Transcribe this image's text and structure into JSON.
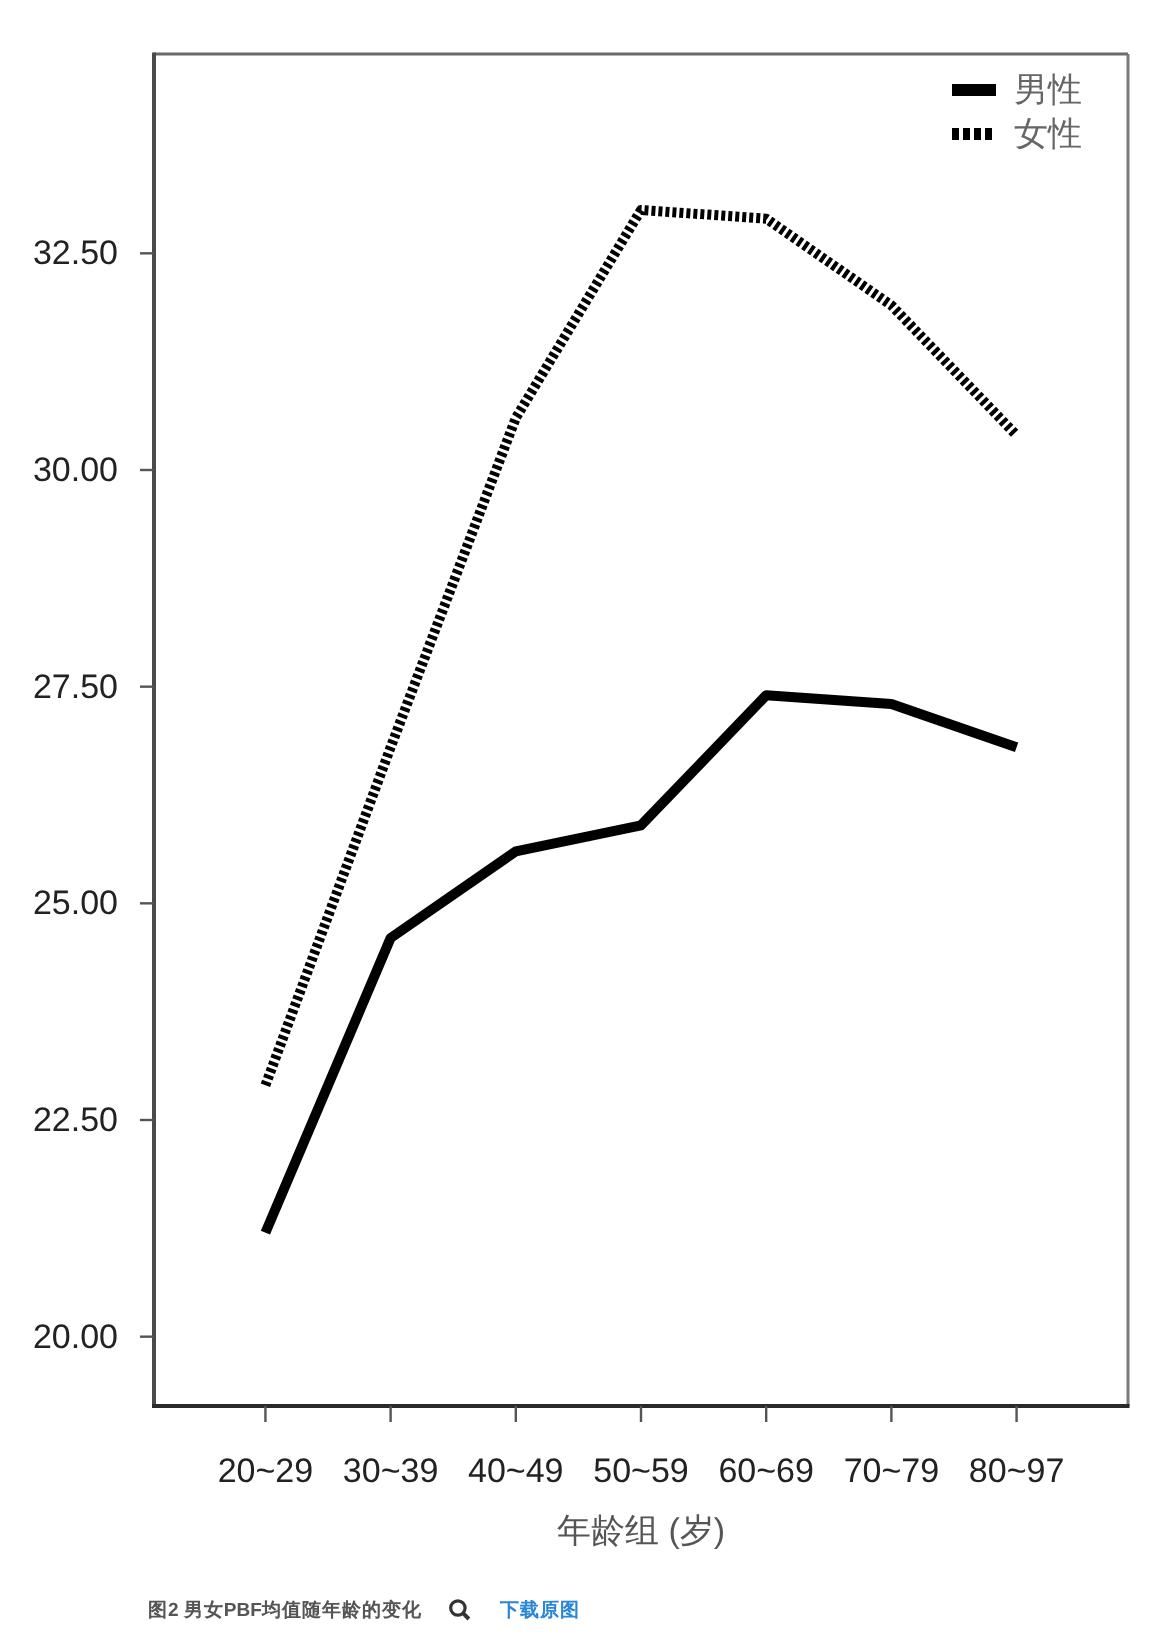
{
  "chart_data": {
    "type": "line",
    "categories": [
      "20~29",
      "30~39",
      "40~49",
      "50~59",
      "60~69",
      "70~79",
      "80~97"
    ],
    "xlabel": "年龄组 (岁)",
    "ylim": [
      19.2,
      34.8
    ],
    "yticks": [
      {
        "value": 20,
        "label": "20.00"
      },
      {
        "value": 22.5,
        "label": "22.50"
      },
      {
        "value": 25,
        "label": "25.00"
      },
      {
        "value": 27.5,
        "label": "27.50"
      },
      {
        "value": 30,
        "label": "30.00"
      },
      {
        "value": 32.5,
        "label": "32.50"
      }
    ],
    "series": [
      {
        "name": "男性",
        "color": "#000000",
        "line_style": "solid",
        "values": [
          21.2,
          24.6,
          25.6,
          25.9,
          27.4,
          27.3,
          26.8
        ]
      },
      {
        "name": "女性",
        "color": "#000000",
        "line_style": "dotted",
        "values": [
          22.9,
          26.8,
          30.6,
          33.0,
          32.9,
          31.9,
          30.4
        ]
      }
    ],
    "legend": "top right",
    "annotations": [
      "图2 男女PBF均值随年龄的变化",
      "下载原图"
    ]
  }
}
